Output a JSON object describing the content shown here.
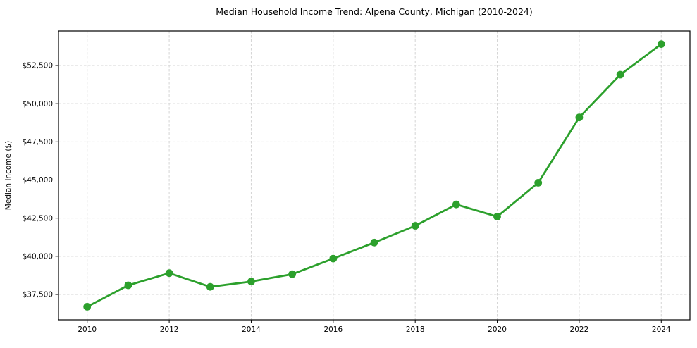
{
  "chart_data": {
    "type": "line",
    "title": "Median Household Income Trend: Alpena County, Michigan (2010-2024)",
    "xlabel": "",
    "ylabel": "Median Income ($)",
    "x": [
      2010,
      2011,
      2012,
      2013,
      2014,
      2015,
      2016,
      2017,
      2018,
      2019,
      2020,
      2021,
      2022,
      2023,
      2024
    ],
    "values": [
      36700,
      38100,
      38900,
      38000,
      38350,
      38830,
      39850,
      40900,
      42000,
      43400,
      42600,
      44820,
      49100,
      51900,
      53900
    ],
    "xticks": {
      "values": [
        2010,
        2012,
        2014,
        2016,
        2018,
        2020,
        2022,
        2024
      ],
      "labels": [
        "2010",
        "2012",
        "2014",
        "2016",
        "2018",
        "2020",
        "2022",
        "2024"
      ]
    },
    "yticks": {
      "values": [
        37500,
        40000,
        42500,
        45000,
        47500,
        50000,
        52500
      ],
      "labels": [
        "$37,500",
        "$40,000",
        "$42,500",
        "$45,000",
        "$47,500",
        "$50,000",
        "$52,500"
      ]
    },
    "xlim": [
      2009.3,
      2024.7
    ],
    "ylim": [
      35840,
      54760
    ],
    "grid": true,
    "grid_style": "dashed",
    "legend_position": "none",
    "colors": {
      "line": "#2ca02c",
      "marker": "#2ca02c",
      "grid": "#d4d4d4",
      "frame": "#000000",
      "text": "#000000",
      "background": "#ffffff"
    }
  }
}
